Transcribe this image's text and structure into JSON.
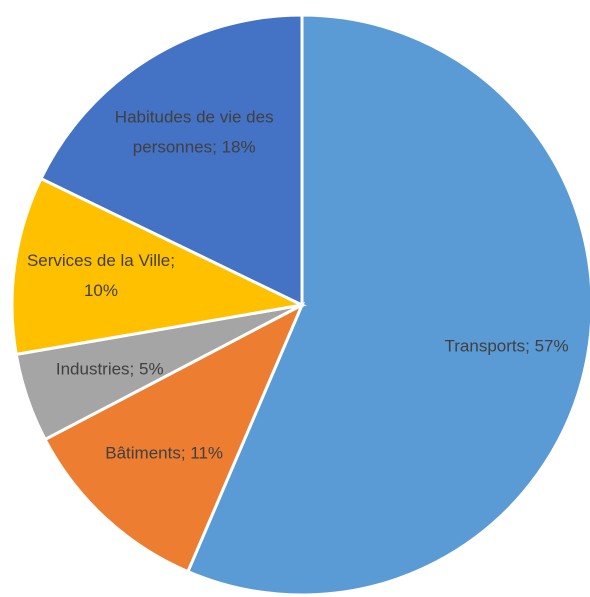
{
  "chart_data": {
    "type": "pie",
    "categories": [
      "Transports",
      "Bâtiments",
      "Industries",
      "Services de la Ville",
      "Habitudes de vie des personnes"
    ],
    "values": [
      57,
      11,
      5,
      10,
      18
    ],
    "value_labels": [
      [
        "Transports; 57%"
      ],
      [
        "Bâtiments; 11%"
      ],
      [
        "Industries; 5%"
      ],
      [
        "Services de la Ville;",
        "10%"
      ],
      [
        "Habitudes de vie des",
        "personnes; 18%"
      ]
    ],
    "colors": [
      "#5b9bd5",
      "#ed7d31",
      "#a5a5a5",
      "#ffc000",
      "#4472c4"
    ]
  }
}
